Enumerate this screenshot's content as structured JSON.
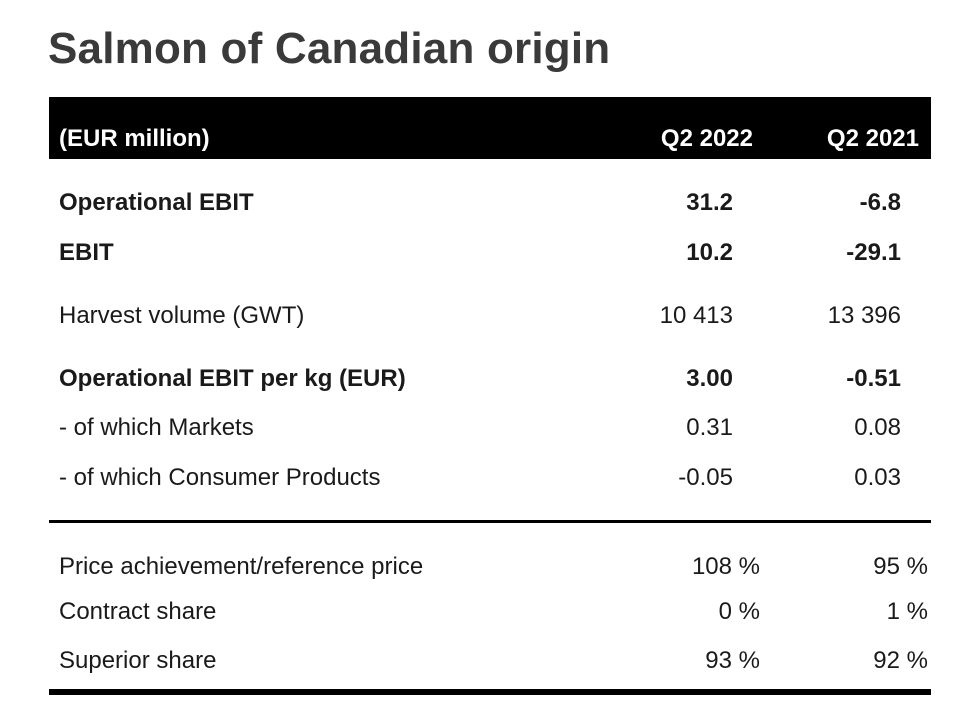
{
  "title": "Salmon of Canadian origin",
  "header": {
    "unit_label": "(EUR million)",
    "col1": "Q2 2022",
    "col2": "Q2 2021"
  },
  "rows_top": [
    {
      "label": "Operational EBIT",
      "q2_2022": "31.2",
      "q2_2021": "-6.8",
      "bold": true
    },
    {
      "label": "EBIT",
      "q2_2022": "10.2",
      "q2_2021": "-29.1",
      "bold": true
    },
    {
      "label": "Harvest volume (GWT)",
      "q2_2022": "10 413",
      "q2_2021": "13 396",
      "bold": false
    },
    {
      "label": "Operational EBIT per kg (EUR)",
      "q2_2022": "3.00",
      "q2_2021": "-0.51",
      "bold": true
    },
    {
      "label": "- of which Markets",
      "q2_2022": "0.31",
      "q2_2021": "0.08",
      "bold": false
    },
    {
      "label": "- of which Consumer Products",
      "q2_2022": "-0.05",
      "q2_2021": "0.03",
      "bold": false
    }
  ],
  "rows_bottom": [
    {
      "label": "Price achievement/reference price",
      "q2_2022": "108 %",
      "q2_2021": "95 %"
    },
    {
      "label": "Contract share",
      "q2_2022": "0 %",
      "q2_2021": "1 %"
    },
    {
      "label": "Superior share",
      "q2_2022": "93 %",
      "q2_2021": "92 %"
    }
  ]
}
